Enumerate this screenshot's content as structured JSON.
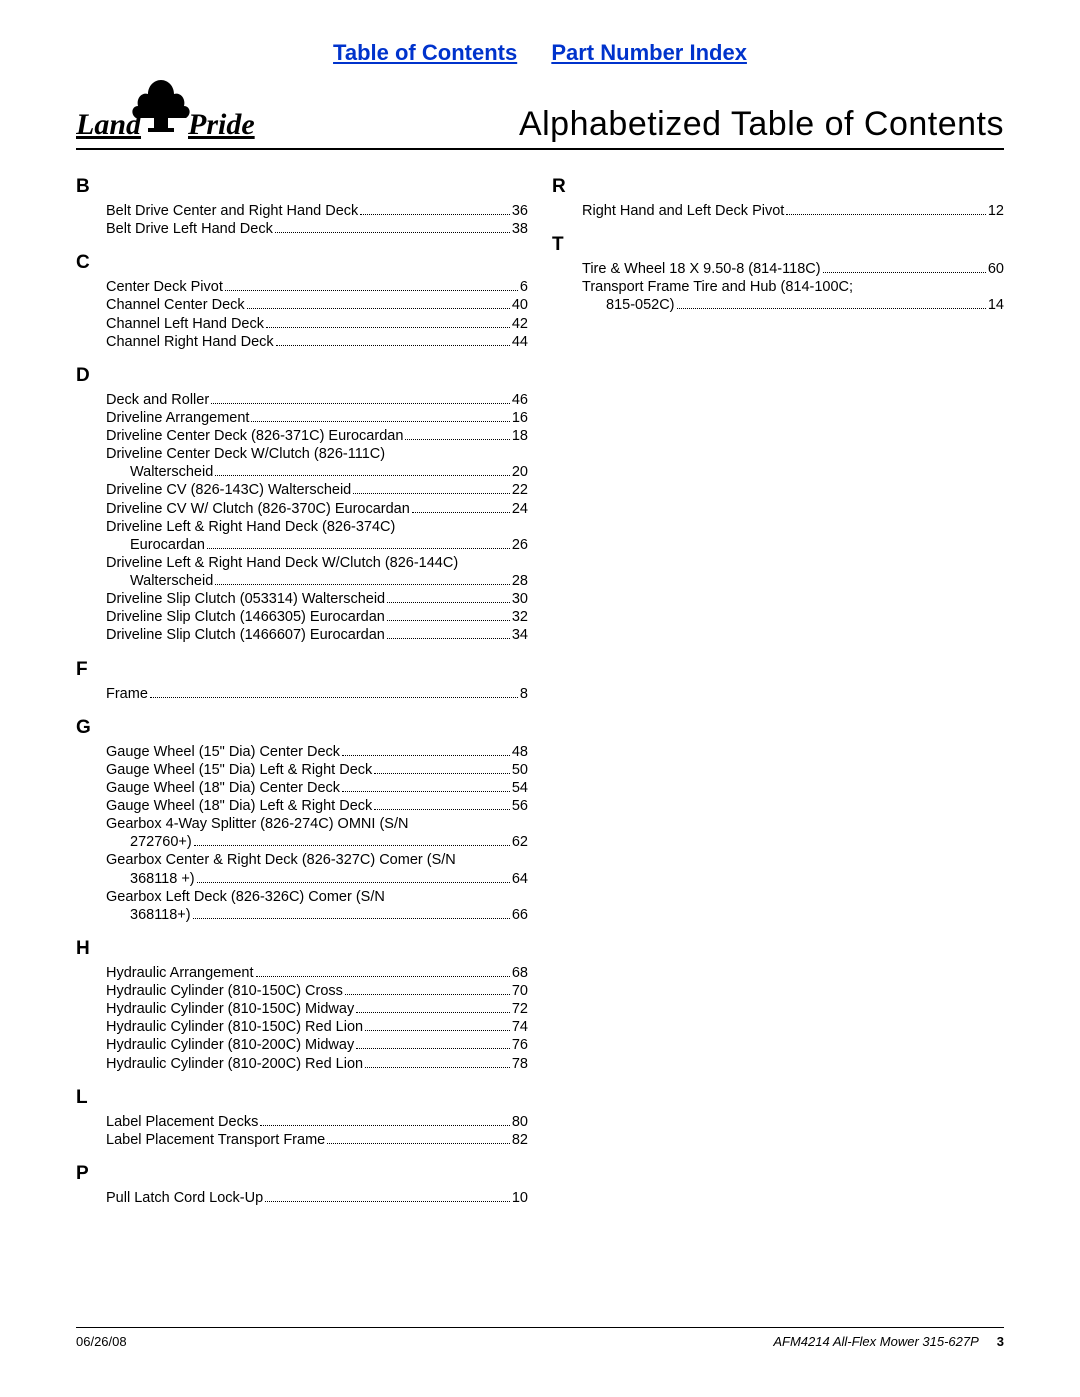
{
  "top_links": {
    "toc": "Table of Contents",
    "pni": "Part Number Index"
  },
  "title": "Alphabetized Table of Contents",
  "logo_text": "Land Pride",
  "footer": {
    "date": "06/26/08",
    "model": "AFM4214 All-Flex Mower 315-627P",
    "page": "3"
  },
  "columns": [
    {
      "groups": [
        {
          "letter": "B",
          "entries": [
            {
              "label": "Belt Drive Center and Right Hand Deck",
              "page": "36"
            },
            {
              "label": "Belt Drive Left Hand Deck",
              "page": "38"
            }
          ]
        },
        {
          "letter": "C",
          "entries": [
            {
              "label": "Center Deck Pivot",
              "page": "6"
            },
            {
              "label": "Channel Center Deck",
              "page": "40"
            },
            {
              "label": "Channel Left Hand Deck",
              "page": "42"
            },
            {
              "label": "Channel Right Hand Deck",
              "page": "44"
            }
          ]
        },
        {
          "letter": "D",
          "entries": [
            {
              "label": "Deck and Roller",
              "page": "46"
            },
            {
              "label": "Driveline Arrangement",
              "page": "16"
            },
            {
              "label": "Driveline Center Deck (826-371C) Eurocardan",
              "page": "18"
            },
            {
              "label": "Driveline Center Deck W/Clutch (826-111C)",
              "no_page": true
            },
            {
              "label": "Walterscheid",
              "page": "20",
              "cont": true
            },
            {
              "label": "Driveline CV (826-143C) Walterscheid",
              "page": "22"
            },
            {
              "label": "Driveline CV W/ Clutch (826-370C) Eurocardan",
              "page": "24"
            },
            {
              "label": "Driveline Left & Right Hand Deck (826-374C)",
              "no_page": true
            },
            {
              "label": "Eurocardan",
              "page": "26",
              "cont": true
            },
            {
              "label": "Driveline Left & Right Hand Deck W/Clutch (826-144C)",
              "no_page": true
            },
            {
              "label": "Walterscheid",
              "page": "28",
              "cont": true
            },
            {
              "label": "Driveline Slip Clutch (053314) Walterscheid",
              "page": "30"
            },
            {
              "label": "Driveline Slip Clutch (1466305) Eurocardan",
              "page": "32"
            },
            {
              "label": "Driveline Slip Clutch (1466607) Eurocardan",
              "page": "34"
            }
          ]
        },
        {
          "letter": "F",
          "entries": [
            {
              "label": "Frame",
              "page": "8"
            }
          ]
        },
        {
          "letter": "G",
          "entries": [
            {
              "label": "Gauge Wheel (15\" Dia) Center Deck",
              "page": "48"
            },
            {
              "label": "Gauge Wheel (15\" Dia) Left & Right Deck",
              "page": "50"
            },
            {
              "label": "Gauge Wheel (18\" Dia) Center Deck",
              "page": "54"
            },
            {
              "label": "Gauge Wheel (18\" Dia) Left & Right Deck",
              "page": "56"
            },
            {
              "label": "Gearbox 4-Way Splitter (826-274C) OMNI (S/N",
              "no_page": true
            },
            {
              "label": "272760+)",
              "page": "62",
              "cont": true
            },
            {
              "label": "Gearbox Center & Right Deck (826-327C) Comer (S/N",
              "no_page": true
            },
            {
              "label": "368118 +)",
              "page": "64",
              "cont": true
            },
            {
              "label": "Gearbox Left Deck (826-326C) Comer (S/N",
              "no_page": true
            },
            {
              "label": "368118+)",
              "page": "66",
              "cont": true
            }
          ]
        },
        {
          "letter": "H",
          "entries": [
            {
              "label": "Hydraulic Arrangement",
              "page": "68"
            },
            {
              "label": "Hydraulic Cylinder (810-150C) Cross",
              "page": "70"
            },
            {
              "label": "Hydraulic Cylinder (810-150C) Midway",
              "page": "72"
            },
            {
              "label": "Hydraulic Cylinder (810-150C) Red Lion",
              "page": "74"
            },
            {
              "label": "Hydraulic Cylinder (810-200C) Midway",
              "page": "76"
            },
            {
              "label": "Hydraulic Cylinder (810-200C) Red Lion",
              "page": "78"
            }
          ]
        },
        {
          "letter": "L",
          "entries": [
            {
              "label": "Label Placement Decks",
              "page": "80"
            },
            {
              "label": "Label Placement Transport Frame",
              "page": "82"
            }
          ]
        },
        {
          "letter": "P",
          "entries": [
            {
              "label": "Pull Latch Cord Lock-Up",
              "page": "10"
            }
          ]
        }
      ]
    },
    {
      "groups": [
        {
          "letter": "R",
          "entries": [
            {
              "label": "Right Hand and Left Deck Pivot",
              "page": "12"
            }
          ]
        },
        {
          "letter": "T",
          "entries": [
            {
              "label": "Tire & Wheel 18 X 9.50-8 (814-118C)",
              "page": "60"
            },
            {
              "label": "Transport Frame Tire and Hub (814-100C;",
              "no_page": true
            },
            {
              "label": "815-052C)",
              "page": "14",
              "cont": true
            }
          ]
        }
      ]
    }
  ]
}
